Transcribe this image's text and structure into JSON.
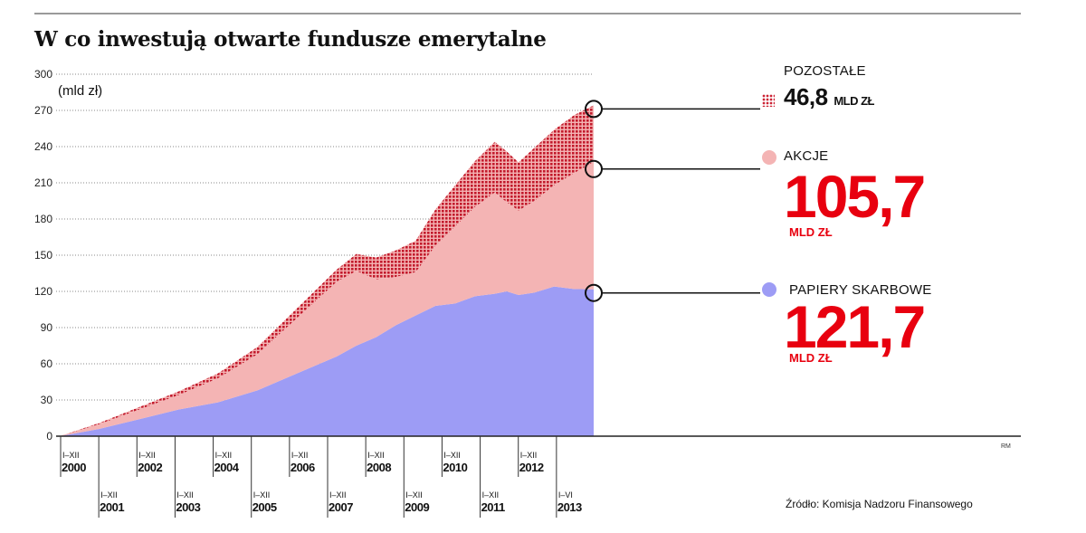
{
  "title": "W co inwestują otwarte fundusze emerytalne",
  "unit_label": "(mld zł)",
  "source": "Źródło: Komisja Nadzoru Finansowego",
  "credit": "RM",
  "legend": {
    "pozostale": {
      "name": "POZOSTAŁE",
      "value": "46,8",
      "unit": "MLD ZŁ"
    },
    "akcje": {
      "name": "AKCJE",
      "value": "105,7",
      "unit": "MLD ZŁ"
    },
    "papiery": {
      "name": "PAPIERY SKARBOWE",
      "value": "121,7",
      "unit": "MLD ZŁ"
    }
  },
  "colors": {
    "papiery": "#9d9cf5",
    "akcje": "#f4b4b4",
    "pozostale": "#cc2233",
    "accent_red": "#e8000f"
  },
  "chart_data": {
    "type": "area",
    "stacked": true,
    "ylabel": "(mld zł)",
    "ylim": [
      0,
      300
    ],
    "y_ticks": [
      0,
      30,
      60,
      90,
      120,
      150,
      180,
      210,
      240,
      270,
      300
    ],
    "grid": "horizontal dotted",
    "x_period_labels": [
      {
        "period": "I–XII",
        "year": "2000"
      },
      {
        "period": "I–XII",
        "year": "2001"
      },
      {
        "period": "I–XII",
        "year": "2002"
      },
      {
        "period": "I–XII",
        "year": "2003"
      },
      {
        "period": "I–XII",
        "year": "2004"
      },
      {
        "period": "I–XII",
        "year": "2005"
      },
      {
        "period": "I–XII",
        "year": "2006"
      },
      {
        "period": "I–XII",
        "year": "2007"
      },
      {
        "period": "I–XII",
        "year": "2008"
      },
      {
        "period": "I–XII",
        "year": "2009"
      },
      {
        "period": "I–XII",
        "year": "2010"
      },
      {
        "period": "I–XII",
        "year": "2011"
      },
      {
        "period": "I–XII",
        "year": "2012"
      },
      {
        "period": "I–VI",
        "year": "2013"
      }
    ],
    "x": [
      2000.0,
      2001.0,
      2002.0,
      2003.0,
      2004.0,
      2005.0,
      2006.0,
      2007.0,
      2007.5,
      2008.0,
      2008.5,
      2009.0,
      2009.5,
      2010.0,
      2010.5,
      2011.0,
      2011.3,
      2011.6,
      2012.0,
      2012.5,
      2013.0,
      2013.5
    ],
    "series": [
      {
        "name": "PAPIERY SKARBOWE",
        "values": [
          0,
          6,
          14,
          22,
          28,
          38,
          52,
          66,
          75,
          82,
          92,
          100,
          108,
          110,
          116,
          118,
          120,
          117,
          119,
          124,
          122,
          121.7
        ]
      },
      {
        "name": "AKCJE",
        "values": [
          0,
          4,
          8,
          12,
          20,
          30,
          46,
          62,
          62,
          48,
          40,
          36,
          50,
          64,
          74,
          84,
          74,
          70,
          76,
          84,
          96,
          105.7
        ]
      },
      {
        "name": "POZOSTAŁE",
        "values": [
          0,
          1,
          2,
          3,
          4,
          6,
          8,
          10,
          14,
          18,
          22,
          26,
          30,
          34,
          38,
          42,
          42,
          40,
          44,
          46,
          48,
          46.8
        ]
      }
    ]
  }
}
